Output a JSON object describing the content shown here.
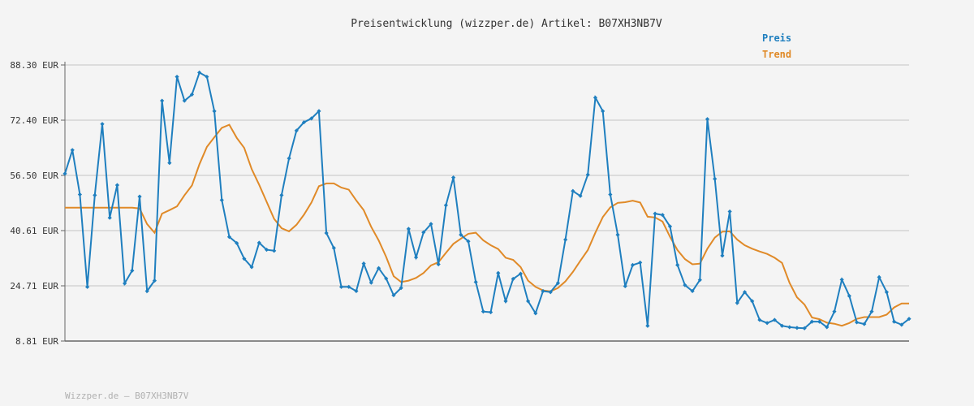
{
  "chart_data": {
    "type": "line",
    "title": "Preisentwicklung (wizzper.de) Artikel: B07XH3NB7V",
    "footer": "Wizzper.de – B07XH3NB7V",
    "ylim": [
      8.81,
      88.3
    ],
    "yticks": [
      "8.81 EUR",
      "24.71 EUR",
      "40.61 EUR",
      "56.50 EUR",
      "72.40 EUR",
      "88.30 EUR"
    ],
    "yticks_values": [
      8.81,
      24.71,
      40.61,
      56.5,
      72.4,
      88.3
    ],
    "grid": true,
    "legend_position": "top-right",
    "colors": {
      "preis": "#1f7fbf",
      "trend": "#e08a28",
      "grid": "#dcdcdc",
      "axis": "#666666"
    },
    "series": [
      {
        "name": "Preis",
        "values": [
          57.0,
          63.8,
          51.0,
          24.4,
          50.8,
          71.3,
          44.3,
          53.7,
          25.4,
          29.1,
          50.4,
          23.2,
          26.2,
          78.0,
          60.1,
          84.9,
          78.0,
          79.8,
          86.1,
          84.9,
          75.0,
          49.4,
          38.8,
          37.0,
          32.5,
          30.1,
          37.1,
          35.1,
          34.8,
          50.8,
          61.4,
          69.4,
          71.8,
          72.9,
          75.0,
          39.9,
          35.6,
          24.4,
          24.4,
          23.2,
          31.1,
          25.6,
          29.8,
          26.8,
          22.0,
          24.1,
          41.1,
          32.9,
          40.1,
          42.5,
          30.9,
          47.9,
          55.9,
          39.4,
          37.5,
          25.8,
          17.3,
          17.1,
          28.4,
          20.3,
          26.7,
          28.2,
          20.3,
          16.8,
          23.2,
          22.9,
          25.5,
          38.0,
          52.0,
          50.6,
          56.7,
          78.9,
          75.0,
          51.0,
          39.4,
          24.6,
          30.7,
          31.4,
          13.2,
          45.5,
          45.1,
          41.8,
          30.7,
          24.9,
          23.2,
          26.4,
          72.7,
          55.5,
          33.4,
          46.1,
          19.8,
          22.9,
          20.3,
          14.9,
          14.0,
          14.9,
          13.2,
          12.8,
          12.6,
          12.5,
          14.4,
          14.4,
          12.8,
          17.3,
          26.5,
          21.8,
          14.2,
          13.7,
          17.3,
          27.2,
          22.9,
          14.4,
          13.5,
          15.2
        ]
      },
      {
        "name": "Trend",
        "values": [
          47.2,
          47.2,
          47.2,
          47.2,
          47.2,
          47.2,
          47.2,
          47.2,
          47.2,
          47.2,
          47.0,
          42.5,
          40.0,
          45.5,
          46.5,
          47.6,
          50.8,
          53.6,
          59.7,
          64.7,
          67.5,
          70.2,
          71.1,
          67.3,
          64.4,
          58.3,
          53.8,
          48.9,
          44.0,
          41.3,
          40.4,
          42.3,
          45.2,
          48.7,
          53.4,
          54.2,
          54.2,
          53.0,
          52.4,
          49.3,
          46.5,
          41.7,
          37.8,
          33.0,
          27.5,
          25.8,
          26.2,
          27.0,
          28.4,
          30.6,
          31.5,
          34.2,
          36.8,
          38.3,
          39.7,
          40.0,
          37.8,
          36.4,
          35.3,
          32.8,
          32.2,
          30.1,
          26.2,
          24.4,
          23.4,
          23.1,
          24.1,
          26.0,
          28.7,
          31.9,
          35.0,
          40.0,
          44.5,
          47.3,
          48.6,
          48.8,
          49.2,
          48.7,
          44.6,
          44.4,
          43.2,
          38.8,
          35.0,
          32.4,
          30.9,
          31.1,
          35.4,
          38.6,
          40.3,
          40.4,
          38.0,
          36.4,
          35.4,
          34.6,
          33.9,
          32.8,
          31.3,
          25.6,
          21.4,
          19.3,
          15.6,
          15.1,
          14.1,
          13.8,
          13.2,
          14.0,
          15.2,
          15.7,
          15.7,
          15.7,
          16.4,
          18.5,
          19.6,
          19.6
        ]
      }
    ]
  }
}
